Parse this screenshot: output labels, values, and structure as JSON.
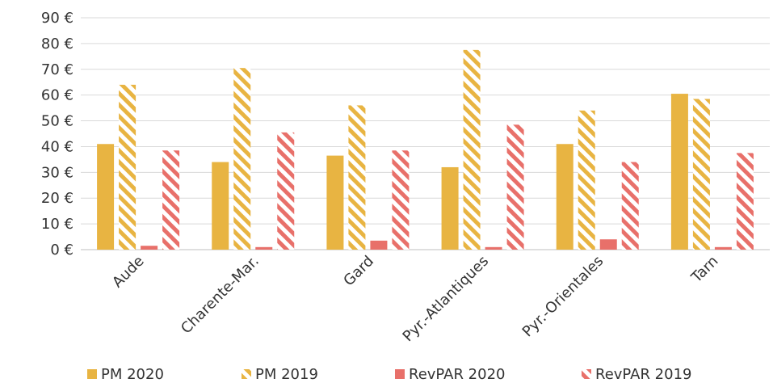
{
  "chart_data": {
    "type": "bar",
    "categories": [
      "Aude",
      "Charente-Mar.",
      "Gard",
      "Pyr.-Atlantiques",
      "Pyr.-Orientales",
      "Tarn"
    ],
    "series": [
      {
        "name": "PM 2020",
        "values": [
          41,
          34,
          36.5,
          32,
          41,
          60.5
        ],
        "color": "#E8B442",
        "pattern": "solid"
      },
      {
        "name": "PM 2019",
        "values": [
          64,
          70.5,
          56,
          77.5,
          54,
          58.5
        ],
        "color": "#E8B442",
        "pattern": "hatched"
      },
      {
        "name": "RevPAR 2020",
        "values": [
          1.5,
          1,
          3.5,
          1,
          4,
          1
        ],
        "color": "#E8706A",
        "pattern": "solid"
      },
      {
        "name": "RevPAR 2019",
        "values": [
          38.5,
          45.5,
          38.5,
          48.5,
          34,
          37.5
        ],
        "color": "#E8706A",
        "pattern": "hatched"
      }
    ],
    "yticks": [
      "0 €",
      "10 €",
      "20 €",
      "30 €",
      "40 €",
      "50 €",
      "60 €",
      "70 €",
      "80 €",
      "90 €"
    ],
    "ylim": [
      0,
      90
    ],
    "grid": true,
    "legend": "bottom"
  }
}
